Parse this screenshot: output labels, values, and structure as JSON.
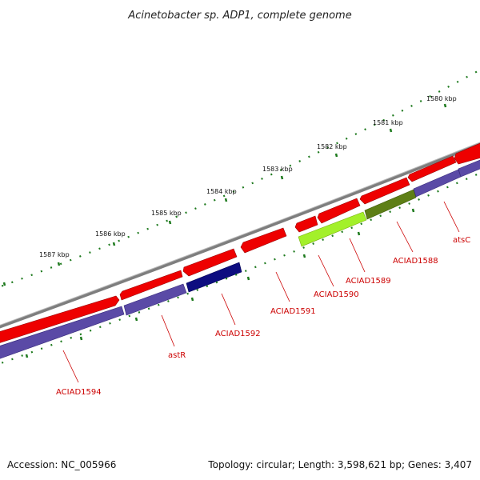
{
  "title": "Acinetobacter sp. ADP1, complete genome",
  "accession": "Accession: NC_005966",
  "topology": "Topology: circular; Length: 3,598,621 bp; Genes: 3,407",
  "colors": {
    "backbone": "#8c8c8c",
    "gene_red": "#ee0000",
    "gene_purple": "#5a4aa6",
    "gene_navy": "#0d0d80",
    "gene_lime": "#a3f02a",
    "gene_olive": "#5e7f16",
    "tick_green": "#1e7a1e",
    "label_red": "#cc0000"
  },
  "kbp_labels": [
    "1580 kbp",
    "1581 kbp",
    "1582 kbp",
    "1583 kbp",
    "1584 kbp",
    "1585 kbp",
    "1586 kbp",
    "1587 kbp"
  ],
  "gene_labels": [
    "atsC",
    "ACIAD1588",
    "ACIAD1589",
    "ACIAD1590",
    "ACIAD1591",
    "ACIAD1592",
    "astR",
    "ACIAD1594"
  ]
}
